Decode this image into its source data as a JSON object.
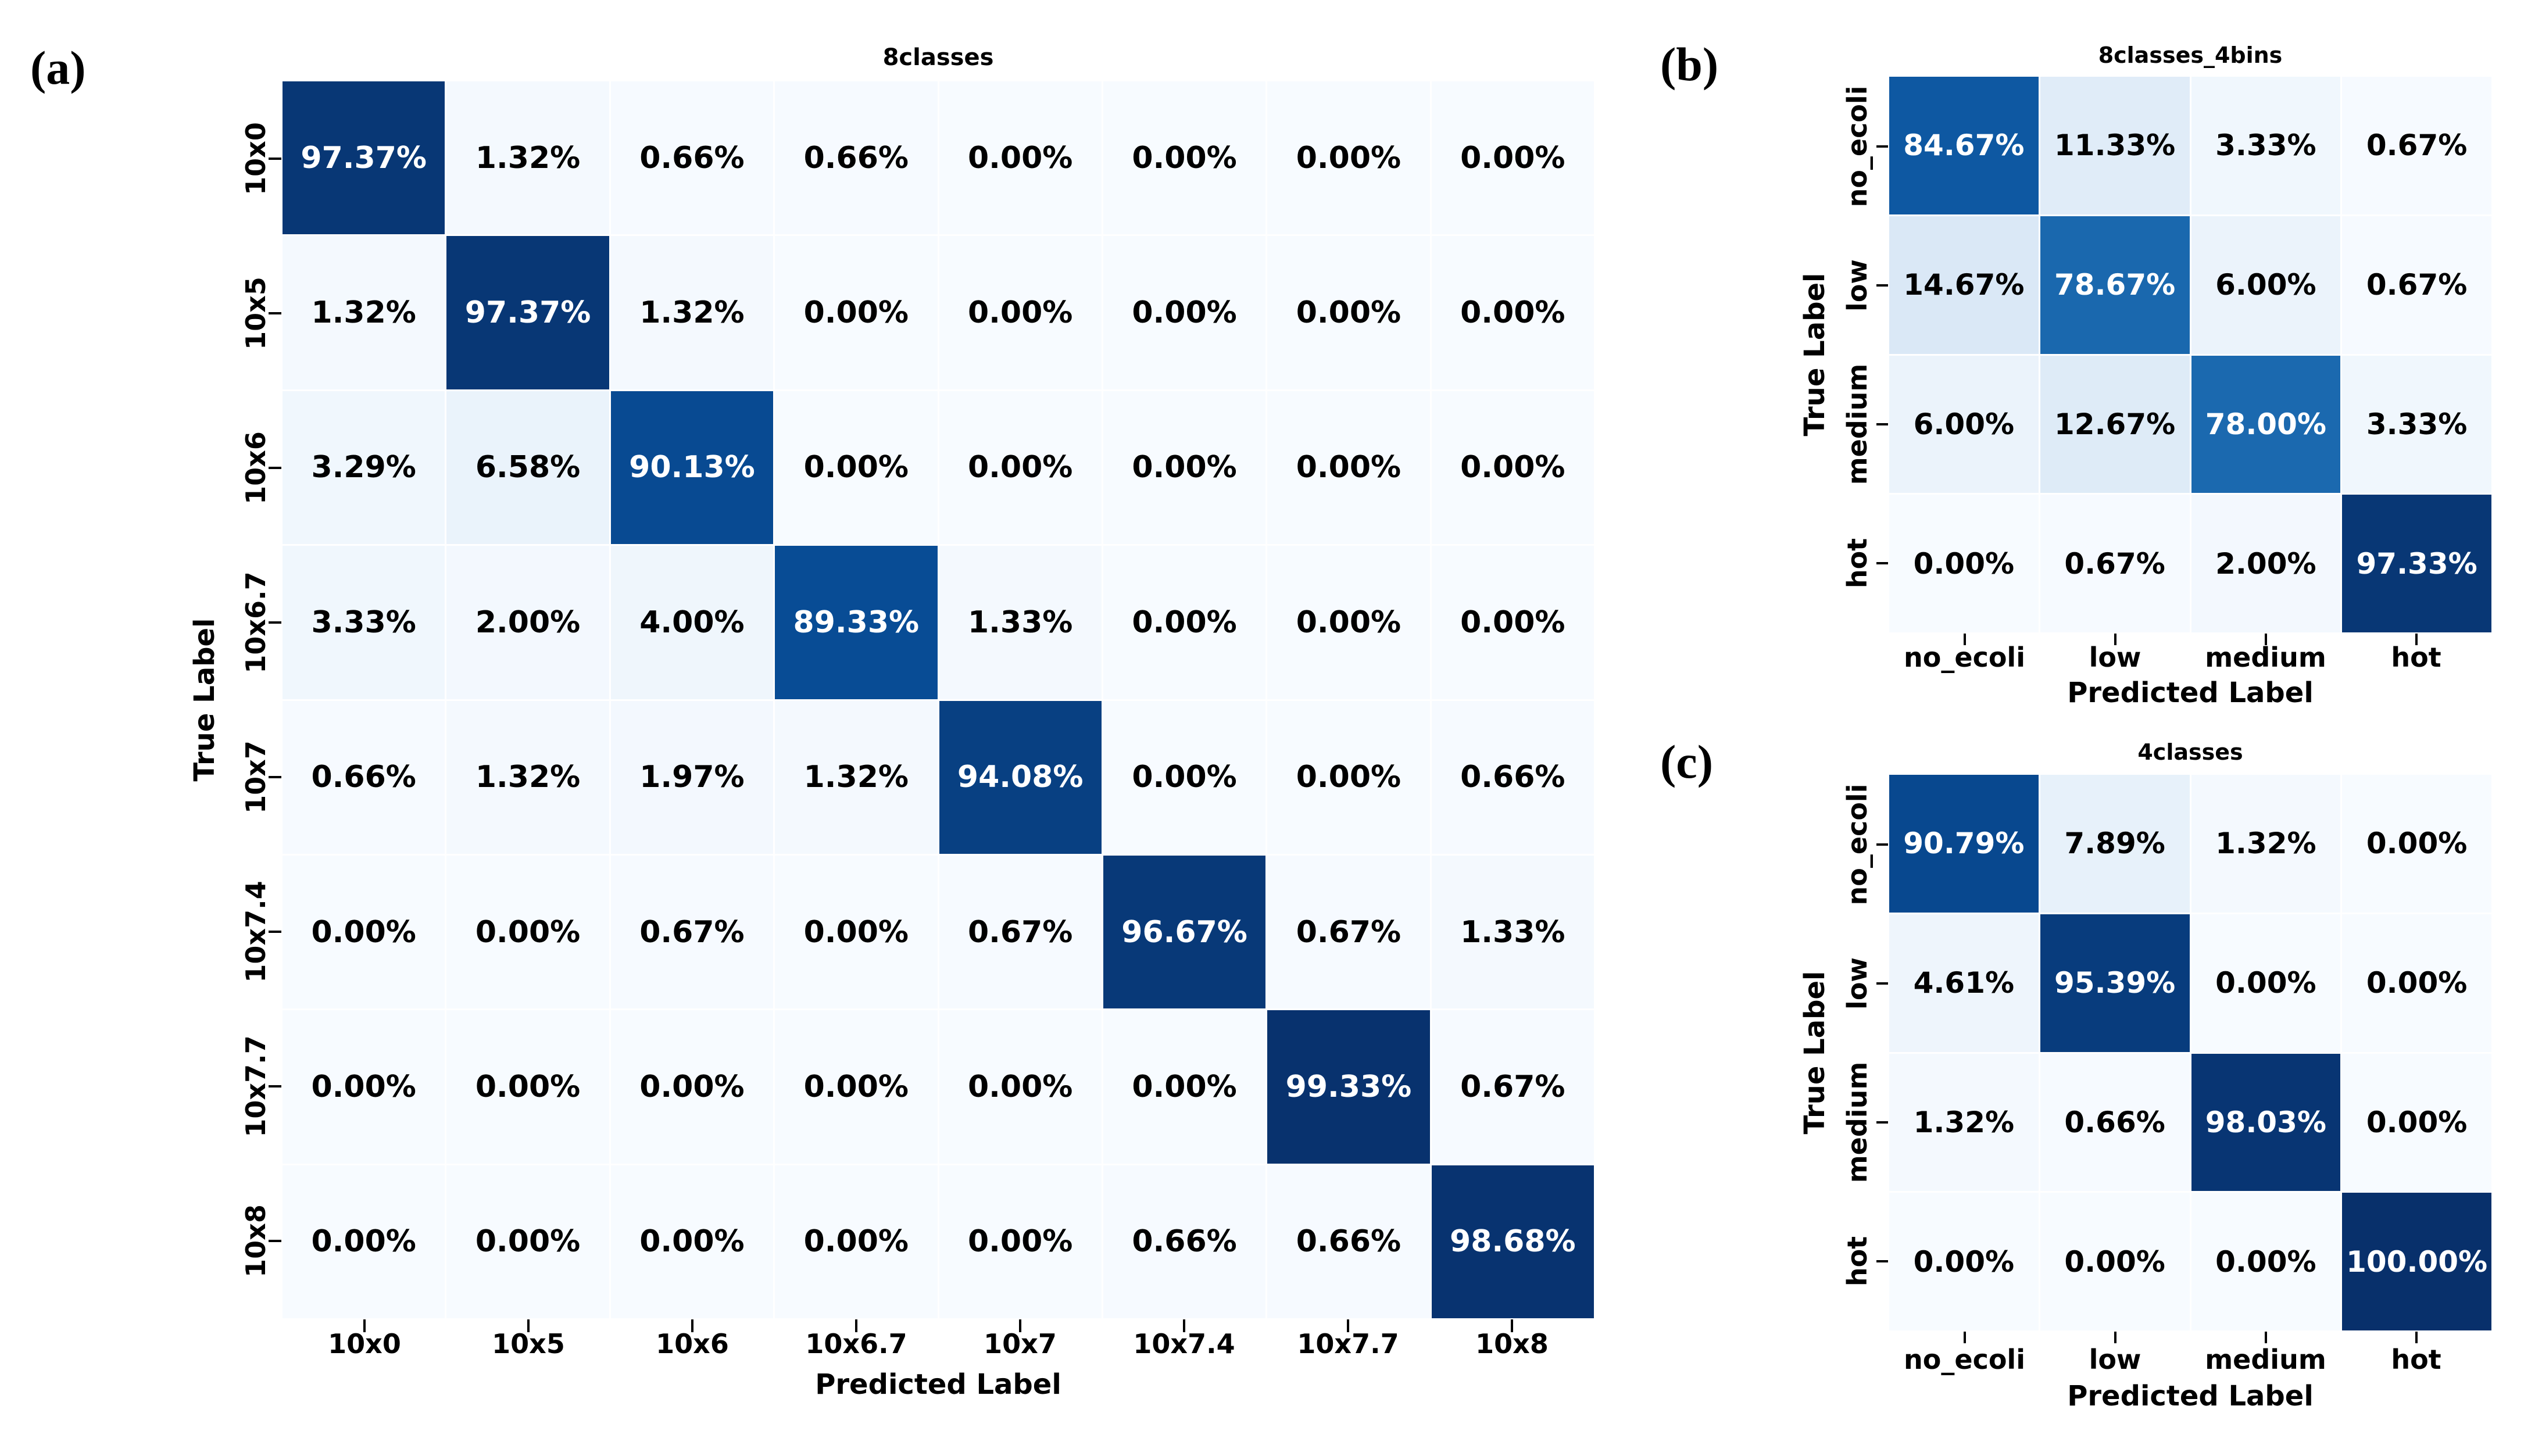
{
  "figure": {
    "background": "#ffffff",
    "grid_line_color": "#ffffff",
    "text_color": "#000000",
    "cell_text_light": "#ffffff",
    "colormap": {
      "name": "Blues",
      "stops": [
        0,
        0.125,
        0.25,
        0.375,
        0.5,
        0.625,
        0.75,
        0.875,
        1
      ],
      "colors": [
        "#f7fbff",
        "#deebf7",
        "#c6dbef",
        "#9ecae1",
        "#6baed6",
        "#4292c6",
        "#2171b5",
        "#08519c",
        "#08306b"
      ]
    }
  },
  "chart_data": [
    {
      "type": "heatmap",
      "panel_label": "(a)",
      "title": "8classes",
      "xlabel": "Predicted Label",
      "ylabel": "True Label",
      "x_tick_labels": [
        "10x0",
        "10x5",
        "10x6",
        "10x6.7",
        "10x7",
        "10x7.4",
        "10x7.7",
        "10x8"
      ],
      "y_tick_labels": [
        "10x0",
        "10x5",
        "10x6",
        "10x6.7",
        "10x7",
        "10x7.4",
        "10x7.7",
        "10x8"
      ],
      "value_range": [
        0,
        100
      ],
      "cell_format": "{:.2f}%",
      "values_percent": [
        [
          97.37,
          1.32,
          0.66,
          0.66,
          0.0,
          0.0,
          0.0,
          0.0
        ],
        [
          1.32,
          97.37,
          1.32,
          0.0,
          0.0,
          0.0,
          0.0,
          0.0
        ],
        [
          3.29,
          6.58,
          90.13,
          0.0,
          0.0,
          0.0,
          0.0,
          0.0
        ],
        [
          3.33,
          2.0,
          4.0,
          89.33,
          1.33,
          0.0,
          0.0,
          0.0
        ],
        [
          0.66,
          1.32,
          1.97,
          1.32,
          94.08,
          0.0,
          0.0,
          0.66
        ],
        [
          0.0,
          0.0,
          0.67,
          0.0,
          0.67,
          96.67,
          0.67,
          1.33
        ],
        [
          0.0,
          0.0,
          0.0,
          0.0,
          0.0,
          0.0,
          99.33,
          0.67
        ],
        [
          0.0,
          0.0,
          0.0,
          0.0,
          0.0,
          0.66,
          0.66,
          98.68
        ]
      ]
    },
    {
      "type": "heatmap",
      "panel_label": "(b)",
      "title": "8classes_4bins",
      "xlabel": "Predicted Label",
      "ylabel": "True Label",
      "x_tick_labels": [
        "no_ecoli",
        "low",
        "medium",
        "hot"
      ],
      "y_tick_labels": [
        "no_ecoli",
        "low",
        "medium",
        "hot"
      ],
      "value_range": [
        0,
        100
      ],
      "cell_format": "{:.2f}%",
      "values_percent": [
        [
          84.67,
          11.33,
          3.33,
          0.67
        ],
        [
          14.67,
          78.67,
          6.0,
          0.67
        ],
        [
          6.0,
          12.67,
          78.0,
          3.33
        ],
        [
          0.0,
          0.67,
          2.0,
          97.33
        ]
      ]
    },
    {
      "type": "heatmap",
      "panel_label": "(c)",
      "title": "4classes",
      "xlabel": "Predicted Label",
      "ylabel": "True Label",
      "x_tick_labels": [
        "no_ecoli",
        "low",
        "medium",
        "hot"
      ],
      "y_tick_labels": [
        "no_ecoli",
        "low",
        "medium",
        "hot"
      ],
      "value_range": [
        0,
        100
      ],
      "cell_format": "{:.2f}%",
      "values_percent": [
        [
          90.79,
          7.89,
          1.32,
          0.0
        ],
        [
          4.61,
          95.39,
          0.0,
          0.0
        ],
        [
          1.32,
          0.66,
          98.03,
          0.0
        ],
        [
          0.0,
          0.0,
          0.0,
          100.0
        ]
      ]
    }
  ]
}
